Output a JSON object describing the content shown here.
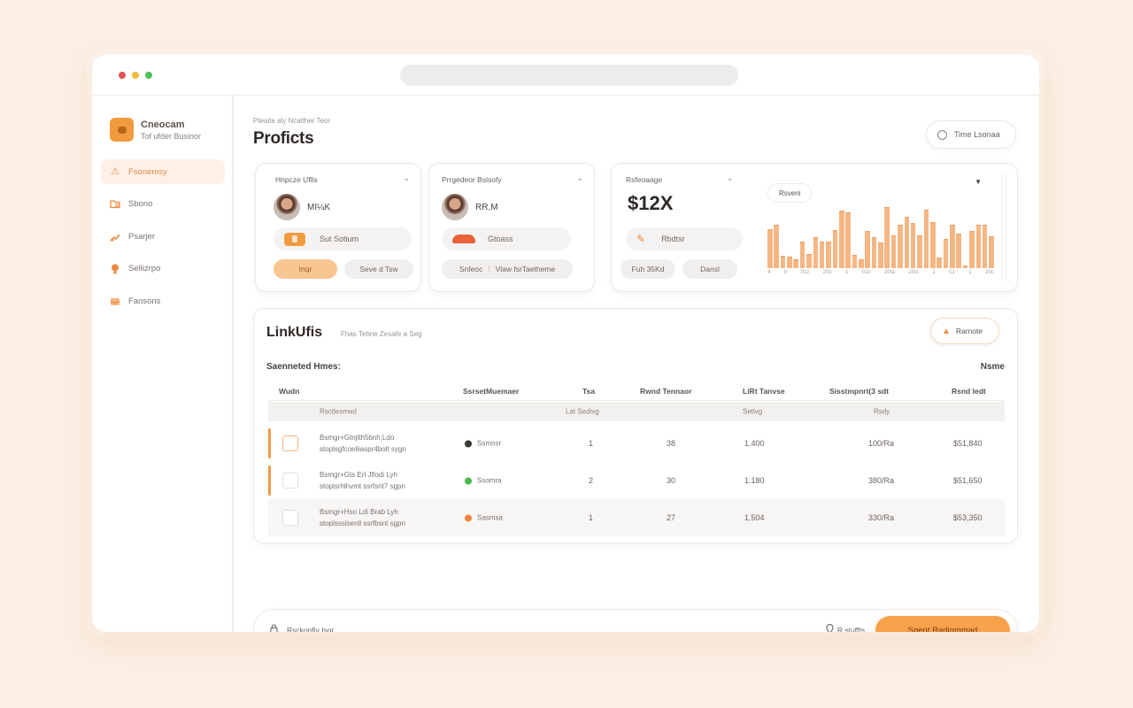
{
  "colors": {
    "accent": "#f29a3e",
    "cta": "#f7a14b",
    "bar": "#f6b683",
    "background": "#fbeee3",
    "window_dots": [
      "#e0534f",
      "#f2bb3c",
      "#4cc25a"
    ]
  },
  "window": {
    "url_bar": ""
  },
  "sidebar": {
    "brand": {
      "title": "Cneocam",
      "subtitle": "Tof ufder Businor",
      "icon": "logo-icon"
    },
    "items": [
      {
        "label": "Fsonemsy",
        "icon": "warning-icon",
        "active": true
      },
      {
        "label": "Sbono",
        "icon": "folder-search-icon",
        "active": false
      },
      {
        "label": "Psarjer",
        "icon": "chart-up-icon",
        "active": false
      },
      {
        "label": "Sellizrpo",
        "icon": "lightbulb-icon",
        "active": false
      },
      {
        "label": "Fansons",
        "icon": "inbox-icon",
        "active": false
      }
    ]
  },
  "header": {
    "breadcrumb": "Pteaite aly Ncatlher Teor",
    "title": "Proficts",
    "action_button": {
      "label": "Time Lsonaa",
      "icon": "clock-icon"
    }
  },
  "cards": [
    {
      "title": "Hnpcze Uflls",
      "value": "MI¼K",
      "pill": {
        "label": "Sut Sotium",
        "icon": "badge-icon"
      },
      "buttons": [
        "Inqr",
        "Seve d Tsw"
      ]
    },
    {
      "title": "Prrgedeor Bslsofy",
      "value": "RR,M",
      "pill": {
        "label": "Gtoass",
        "icon": "cloud-icon"
      },
      "buttons": [
        "Snfeoc",
        "Vlaw fsrTaetheme"
      ]
    },
    {
      "title": "Rsfeoaage",
      "value": "$12X",
      "pill": {
        "label": "Rbdtsr",
        "icon": "pencil-icon"
      },
      "buttons": [
        "Fuh 35Kd",
        "Dansl"
      ]
    }
  ],
  "chart_data": {
    "type": "bar",
    "title": "",
    "badge": "Rsveni",
    "xlabel": "",
    "ylabel": "",
    "grid": false,
    "legend": null,
    "x_tick_labels": [
      "4",
      "0",
      "01z",
      "20c",
      "1",
      "02c",
      "20ta",
      "20ct",
      "1",
      "01",
      "1",
      "20c"
    ],
    "values": [
      38,
      42,
      12,
      11,
      9,
      26,
      14,
      30,
      26,
      26,
      37,
      56,
      54,
      13,
      9,
      36,
      30,
      25,
      59,
      32,
      42,
      50,
      44,
      32,
      57,
      45,
      10,
      28,
      42,
      34,
      3,
      36,
      42,
      42,
      31
    ],
    "ylim": [
      0,
      62
    ]
  },
  "table": {
    "title": "LinkUfis",
    "subtitle": "Fhas Tehne Zesafe a Seg",
    "action_button": {
      "label": "Rarnote",
      "icon": "user-icon"
    },
    "section_label": "Saenneted Hmes:",
    "section_right": "Nsme",
    "columns": [
      "Wudn",
      "SsrsetMuemaer",
      "Tsa",
      "Rwnd Tennaor",
      "LiRt Tanvse",
      "Sisstmpnrt(3 sdt",
      "Rsnd Iedt"
    ],
    "subheader": [
      "Rsctlesmed",
      "Lat Sedivg",
      "Setlvg",
      "Rsdy"
    ],
    "rows": [
      {
        "name": "Bsmgr+Gtnjlth5bnh,Ldo",
        "desc": "stoplsgfcoeliiaspr4bolt sygn",
        "status": "Ssmnsr",
        "status_color": "#3c3a36",
        "qty": "1",
        "num": "38",
        "value": "1.400",
        "pct": "100/Ra",
        "amount": "$51,840",
        "highlight": true,
        "checkbox_accent": true
      },
      {
        "name": "Bsmgr+Gts Erl Jflodi Lyh",
        "desc": "stoplsrhlhvmt ssrfsnt7 sgpn",
        "status": "Ssomra",
        "status_color": "#4bb84a",
        "qty": "2",
        "num": "30",
        "value": "1.180",
        "pct": "380/Ra",
        "amount": "$51,650",
        "highlight": true,
        "checkbox_accent": false
      },
      {
        "name": "Bsmgr+Hso Ldi Brab Lyh",
        "desc": "stoplssslsenll ssrfbsnt sgpn",
        "status": "Sasmsa",
        "status_color": "#f0883e",
        "qty": "1",
        "num": "27",
        "value": "1.504",
        "pct": "330/Ra",
        "amount": "$53,350",
        "highlight": false,
        "checkbox_accent": false
      }
    ]
  },
  "footer": {
    "left_label": "Rsckonfiy Isgr",
    "left_icon": "lock-icon",
    "meta_label": "R stuffts",
    "meta_icon": "pin-icon",
    "cta_label": "Sgent Radiommad"
  }
}
